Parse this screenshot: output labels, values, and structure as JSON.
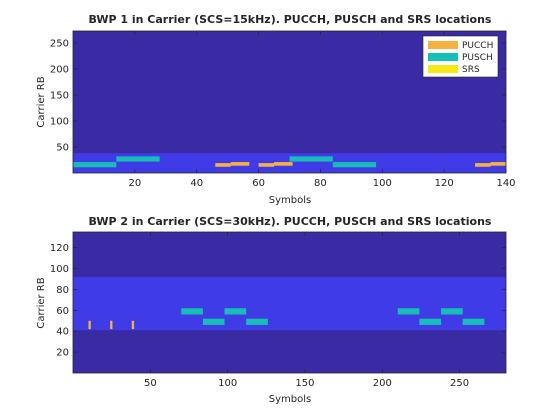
{
  "colors": {
    "background": "#3A2AA4",
    "bwp_region": "#3F3BE6",
    "pucch": "#F4B33F",
    "pusch": "#17BEB8",
    "srs": "#F9E818",
    "axis": "#262626"
  },
  "chart_data": [
    {
      "type": "heatmap",
      "title": "BWP 1 in Carrier (SCS=15kHz). PUCCH, PUSCH and SRS locations",
      "xlabel": "Symbols",
      "ylabel": "Carrier RB",
      "xlim": [
        0,
        140
      ],
      "ylim": [
        0,
        273
      ],
      "xticks": [
        "20",
        "40",
        "60",
        "80",
        "100",
        "120",
        "140"
      ],
      "xtick_values": [
        20,
        40,
        60,
        80,
        100,
        120,
        140
      ],
      "yticks": [
        "50",
        "100",
        "150",
        "200",
        "250"
      ],
      "ytick_values": [
        50,
        100,
        150,
        200,
        250
      ],
      "legend": {
        "placement": "top-right",
        "entries": [
          {
            "label": "PUCCH",
            "color_key": "pucch"
          },
          {
            "label": "PUSCH",
            "color_key": "pusch"
          },
          {
            "label": "SRS",
            "color_key": "srs"
          }
        ]
      },
      "bwp_region": {
        "rb_start": 0,
        "rb_end": 38
      },
      "allocations": [
        {
          "channel": "pusch",
          "sym_start": 0,
          "sym_end": 14,
          "rb_start": 11,
          "rb_end": 21
        },
        {
          "channel": "pusch",
          "sym_start": 14,
          "sym_end": 28,
          "rb_start": 22,
          "rb_end": 32
        },
        {
          "channel": "pucch",
          "sym_start": 46,
          "sym_end": 51,
          "rb_start": 12,
          "rb_end": 19
        },
        {
          "channel": "pucch",
          "sym_start": 51,
          "sym_end": 57,
          "rb_start": 14,
          "rb_end": 21
        },
        {
          "channel": "pucch",
          "sym_start": 60,
          "sym_end": 65,
          "rb_start": 12,
          "rb_end": 19
        },
        {
          "channel": "pucch",
          "sym_start": 65,
          "sym_end": 71,
          "rb_start": 14,
          "rb_end": 21
        },
        {
          "channel": "pusch",
          "sym_start": 70,
          "sym_end": 84,
          "rb_start": 22,
          "rb_end": 32
        },
        {
          "channel": "pusch",
          "sym_start": 84,
          "sym_end": 98,
          "rb_start": 11,
          "rb_end": 21
        },
        {
          "channel": "pucch",
          "sym_start": 130,
          "sym_end": 135,
          "rb_start": 12,
          "rb_end": 19
        },
        {
          "channel": "pucch",
          "sym_start": 135,
          "sym_end": 140,
          "rb_start": 14,
          "rb_end": 21
        }
      ]
    },
    {
      "type": "heatmap",
      "title": "BWP 2 in Carrier (SCS=30kHz). PUCCH, PUSCH and SRS locations",
      "xlabel": "Symbols",
      "ylabel": "Carrier RB",
      "xlim": [
        0,
        280
      ],
      "ylim": [
        0,
        135
      ],
      "xticks": [
        "50",
        "100",
        "150",
        "200",
        "250"
      ],
      "xtick_values": [
        50,
        100,
        150,
        200,
        250
      ],
      "yticks": [
        "20",
        "40",
        "60",
        "80",
        "100",
        "120"
      ],
      "ytick_values": [
        20,
        40,
        60,
        80,
        100,
        120
      ],
      "bwp_region": {
        "rb_start": 41,
        "rb_end": 92
      },
      "allocations": [
        {
          "channel": "pucch",
          "sym_start": 10,
          "sym_end": 11.5,
          "rb_start": 42,
          "rb_end": 50
        },
        {
          "channel": "pucch",
          "sym_start": 24,
          "sym_end": 25.5,
          "rb_start": 42,
          "rb_end": 50
        },
        {
          "channel": "pucch",
          "sym_start": 38,
          "sym_end": 39.5,
          "rb_start": 42,
          "rb_end": 50
        },
        {
          "channel": "pusch",
          "sym_start": 70,
          "sym_end": 84,
          "rb_start": 56,
          "rb_end": 62
        },
        {
          "channel": "pusch",
          "sym_start": 84,
          "sym_end": 98,
          "rb_start": 46,
          "rb_end": 52
        },
        {
          "channel": "pusch",
          "sym_start": 98,
          "sym_end": 112,
          "rb_start": 56,
          "rb_end": 62
        },
        {
          "channel": "pusch",
          "sym_start": 112,
          "sym_end": 126,
          "rb_start": 46,
          "rb_end": 52
        },
        {
          "channel": "pusch",
          "sym_start": 210,
          "sym_end": 224,
          "rb_start": 56,
          "rb_end": 62
        },
        {
          "channel": "pusch",
          "sym_start": 224,
          "sym_end": 238,
          "rb_start": 46,
          "rb_end": 52
        },
        {
          "channel": "pusch",
          "sym_start": 238,
          "sym_end": 252,
          "rb_start": 56,
          "rb_end": 62
        },
        {
          "channel": "pusch",
          "sym_start": 252,
          "sym_end": 266,
          "rb_start": 46,
          "rb_end": 52
        }
      ]
    }
  ]
}
